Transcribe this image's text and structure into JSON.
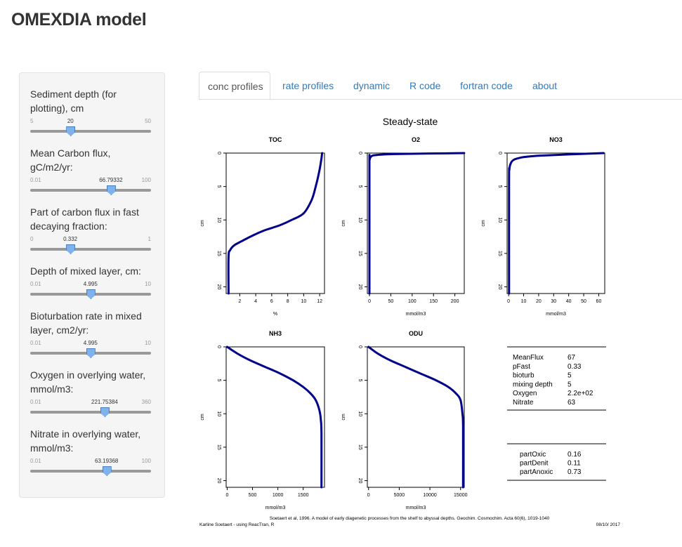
{
  "app": {
    "title": "OMEXDIA model"
  },
  "sidebar": {
    "sliders": [
      {
        "label": "Sediment depth (for plotting), cm",
        "min": "5",
        "max": "50",
        "value": "20",
        "fraction": 0.333
      },
      {
        "label": "Mean Carbon flux, gC/m2/yr:",
        "min": "0.01",
        "max": "100",
        "value": "66.79332",
        "fraction": 0.668
      },
      {
        "label": "Part of carbon flux in fast decaying fraction:",
        "min": "0",
        "max": "1",
        "value": "0.332",
        "fraction": 0.332
      },
      {
        "label": "Depth of mixed layer, cm:",
        "min": "0.01",
        "max": "10",
        "value": "4.995",
        "fraction": 0.499
      },
      {
        "label": "Bioturbation rate in mixed layer, cm2/yr:",
        "min": "0.01",
        "max": "10",
        "value": "4.995",
        "fraction": 0.499
      },
      {
        "label": "Oxygen in overlying water, mmol/m3:",
        "min": "0.01",
        "max": "360",
        "value": "221.75384",
        "fraction": 0.616
      },
      {
        "label": "Nitrate in overlying water, mmol/m3:",
        "min": "0.01",
        "max": "100",
        "value": "63.19368",
        "fraction": 0.632
      }
    ]
  },
  "tabs": [
    {
      "label": "conc profiles",
      "active": true
    },
    {
      "label": "rate profiles",
      "active": false
    },
    {
      "label": "dynamic",
      "active": false
    },
    {
      "label": "R code",
      "active": false
    },
    {
      "label": "fortran code",
      "active": false
    },
    {
      "label": "about",
      "active": false
    }
  ],
  "plot": {
    "title": "Steady-state",
    "table1": [
      [
        "MeanFlux",
        "67"
      ],
      [
        "pFast",
        "0.33"
      ],
      [
        "bioturb",
        "5"
      ],
      [
        "mixing depth",
        "5"
      ],
      [
        "Oxygen",
        "2.2e+02"
      ],
      [
        "Nitrate",
        "63"
      ]
    ],
    "table2": [
      [
        "partOxic",
        "0.16"
      ],
      [
        "partDenit",
        "0.11"
      ],
      [
        "partAnoxic",
        "0.73"
      ]
    ],
    "footer": {
      "citation": "Soetaert et al, 1996. A model of early diagenetic processes from the shelf to abyssal depths. Geochim. Cosmochim. Acta 60(6), 1019-1040",
      "author": "Karline Soetaert - using ReacTran, R",
      "date": "08/10/ 2017"
    },
    "line_color": "#00008b"
  },
  "chart_data": [
    {
      "type": "line",
      "title": "TOC",
      "xlabel": "%",
      "ylabel": "cm",
      "xlim": [
        0.3,
        12.6
      ],
      "ylim": [
        21,
        0
      ],
      "xticks": [
        2,
        4,
        6,
        8,
        10,
        12
      ],
      "yticks": [
        0,
        5,
        10,
        15,
        20
      ],
      "x": [
        12.3,
        12.2,
        11.9,
        11.5,
        11.0,
        10.0,
        8.5,
        7.0,
        5.0,
        3.5,
        2.2,
        1.3,
        0.8,
        0.6,
        0.6
      ],
      "y": [
        0,
        1,
        3,
        5,
        7,
        9,
        10,
        10.8,
        11.6,
        12.4,
        13.2,
        13.8,
        14.5,
        15.5,
        21
      ]
    },
    {
      "type": "line",
      "title": "O2",
      "xlabel": "mmol/m3",
      "ylabel": "cm",
      "xlim": [
        -5,
        222
      ],
      "ylim": [
        21,
        0
      ],
      "xticks": [
        0,
        50,
        100,
        150,
        200
      ],
      "yticks": [
        0,
        5,
        10,
        15,
        20
      ],
      "x": [
        221.8,
        60,
        15,
        4,
        0.5,
        0,
        0
      ],
      "y": [
        0,
        0.15,
        0.3,
        0.5,
        1,
        2,
        21
      ]
    },
    {
      "type": "line",
      "title": "NO3",
      "xlabel": "mmol/m3",
      "ylabel": "cm",
      "xlim": [
        -1,
        64
      ],
      "ylim": [
        21,
        0
      ],
      "xticks": [
        0,
        10,
        20,
        30,
        40,
        50,
        60
      ],
      "yticks": [
        0,
        5,
        10,
        15,
        20
      ],
      "x": [
        63.2,
        40,
        20,
        10,
        6,
        3.5,
        2,
        1,
        0.5,
        0.3,
        0.3
      ],
      "y": [
        0,
        0.2,
        0.4,
        0.6,
        0.8,
        1.0,
        1.3,
        1.8,
        2.5,
        4,
        21
      ]
    },
    {
      "type": "line",
      "title": "NH3",
      "xlabel": "mmol/m3",
      "ylabel": "cm",
      "xlim": [
        -20,
        1920
      ],
      "ylim": [
        21,
        0
      ],
      "xticks": [
        0,
        500,
        1000,
        1500
      ],
      "yticks": [
        0,
        5,
        10,
        15,
        20
      ],
      "x": [
        0,
        200,
        450,
        750,
        1050,
        1300,
        1500,
        1650,
        1750,
        1820,
        1850,
        1860,
        1860
      ],
      "y": [
        0,
        1,
        2,
        3,
        4,
        5,
        6,
        7,
        8,
        9.5,
        11,
        13,
        21
      ]
    },
    {
      "type": "line",
      "title": "ODU",
      "xlabel": "mmol/m3",
      "ylabel": "cm",
      "xlim": [
        -200,
        15600
      ],
      "ylim": [
        21,
        0
      ],
      "xticks": [
        0,
        5000,
        10000,
        15000
      ],
      "yticks": [
        0,
        5,
        10,
        15,
        20
      ],
      "x": [
        0,
        1500,
        3500,
        6000,
        8500,
        11000,
        13000,
        14300,
        15000,
        15300,
        15400,
        15400
      ],
      "y": [
        0,
        1,
        2,
        3,
        4,
        5,
        6,
        7,
        8,
        10,
        12,
        21
      ]
    }
  ]
}
